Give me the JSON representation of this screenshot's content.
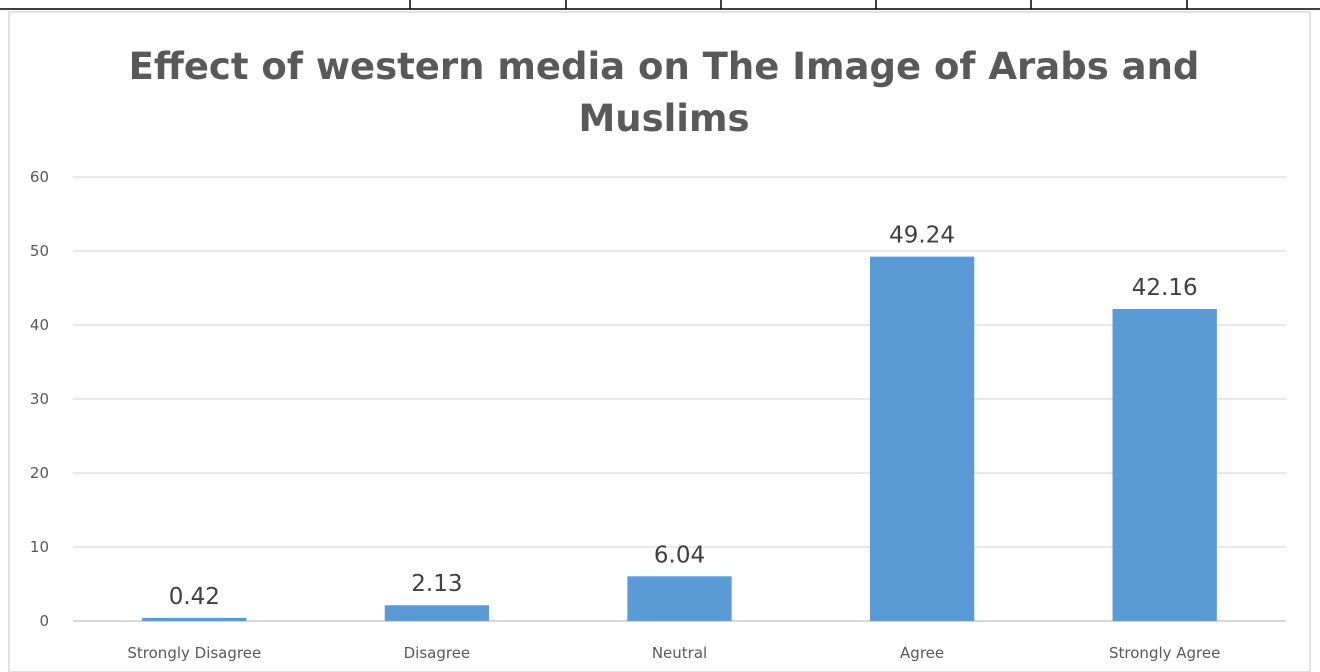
{
  "chart_data": {
    "type": "bar",
    "title": "Effect of western media on The Image of Arabs and Muslims",
    "title_lines": [
      "Effect of western media on The Image of Arabs and",
      "Muslims"
    ],
    "categories": [
      "Strongly Disagree",
      "Disagree",
      "Neutral",
      "Agree",
      "Strongly Agree"
    ],
    "values": [
      0.42,
      2.13,
      6.04,
      49.24,
      42.16
    ],
    "value_labels": [
      "0.42",
      "2.13",
      "6.04",
      "49.24",
      "42.16"
    ],
    "yticks": [
      "0",
      "10",
      "20",
      "30",
      "40",
      "50",
      "60"
    ],
    "ylim": [
      0,
      60
    ],
    "xlabel": "",
    "ylabel": "",
    "grid": true,
    "legend": "none",
    "bar_color": "#5B9BD5",
    "grid_color": "#D9D9D9",
    "text_color": "#595959"
  }
}
